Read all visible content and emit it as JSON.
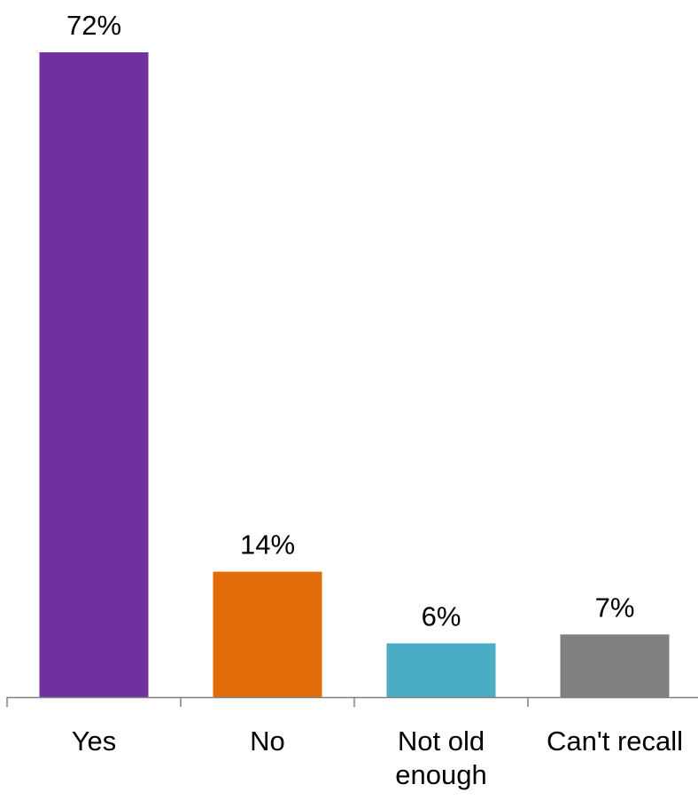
{
  "chart_data": {
    "type": "bar",
    "title": "",
    "xlabel": "",
    "ylabel": "",
    "categories": [
      [
        "Yes"
      ],
      [
        "No"
      ],
      [
        "Not old",
        "enough"
      ],
      [
        "Can't recall"
      ]
    ],
    "values": [
      72,
      14,
      6,
      7
    ],
    "value_labels": [
      "72%",
      "14%",
      "6%",
      "7%"
    ],
    "colors": [
      "#7030A0",
      "#E36C0A",
      "#4BACC6",
      "#808080"
    ],
    "axis_color": "#808080",
    "ylim": [
      0,
      72
    ],
    "grid": false,
    "legend": "none"
  }
}
